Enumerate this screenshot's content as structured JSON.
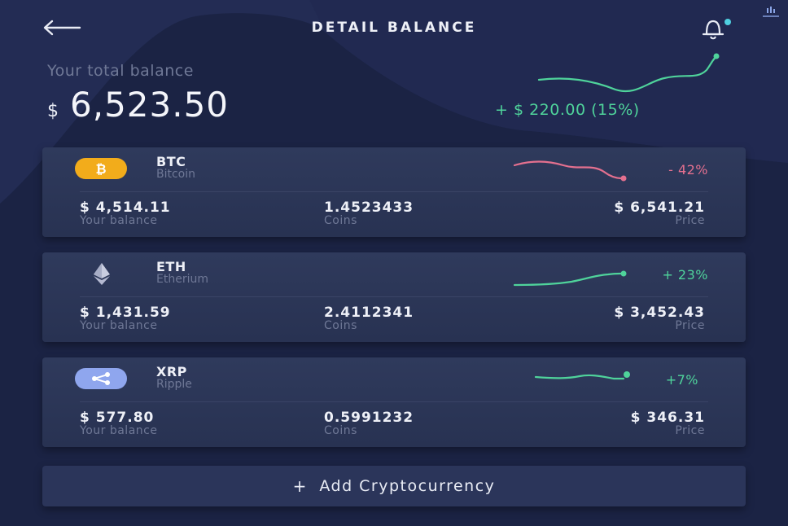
{
  "header": {
    "title": "DETAIL BALANCE",
    "back_icon": "arrow-left-icon",
    "bell_icon": "bell-icon"
  },
  "summary": {
    "label": "Your total balance",
    "currency": "$",
    "amount": "6,523.50",
    "change": "+ $ 220.00 (15%)",
    "trend": "up"
  },
  "colors": {
    "background": "#1b2344",
    "card": "#2f3a5c",
    "positive": "#4fd39b",
    "negative": "#e4708f",
    "btc": "#f2ac1b",
    "xrp": "#8fa6ee",
    "muted": "#6f7896"
  },
  "coins": [
    {
      "symbol": "BTC",
      "name": "Bitcoin",
      "icon": "bitcoin-icon",
      "change": "- 42%",
      "trend": "down",
      "balance": "$ 4,514.11",
      "balance_label": "Your balance",
      "coins": "1.4523433",
      "coins_label": "Coins",
      "price": "$ 6,541.21",
      "price_label": "Price"
    },
    {
      "symbol": "ETH",
      "name": "Etherium",
      "icon": "ethereum-icon",
      "change": "+ 23%",
      "trend": "up",
      "balance": "$ 1,431.59",
      "balance_label": "Your balance",
      "coins": "2.4112341",
      "coins_label": "Coins",
      "price": "$ 3,452.43",
      "price_label": "Price"
    },
    {
      "symbol": "XRP",
      "name": "Ripple",
      "icon": "ripple-icon",
      "change": "+7%",
      "trend": "up",
      "balance": "$ 577.80",
      "balance_label": "Your balance",
      "coins": "0.5991232",
      "coins_label": "Coins",
      "price": "$ 346.31",
      "price_label": "Price"
    }
  ],
  "add_button": {
    "plus": "+",
    "label": "Add Cryptocurrency"
  }
}
